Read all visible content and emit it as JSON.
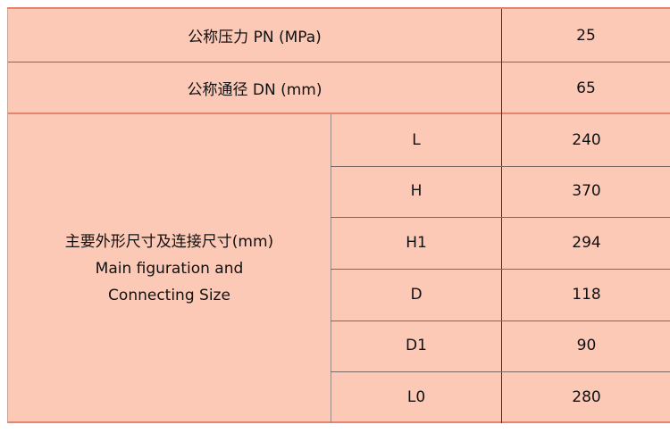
{
  "rows": [
    {
      "label": "公称压力 PN (MPa)",
      "value": "25"
    },
    {
      "label": "公称通径 DN (mm)",
      "value": "65"
    }
  ],
  "dimensions": {
    "label_cn": "主要外形尺寸及连接尺寸(mm)",
    "label_en_1": "Main figuration and",
    "label_en_2": "Connecting Size",
    "items": [
      {
        "key": "L",
        "value": "240"
      },
      {
        "key": "H",
        "value": "370"
      },
      {
        "key": "H1",
        "value": "294"
      },
      {
        "key": "D",
        "value": "118"
      },
      {
        "key": "D1",
        "value": "90"
      },
      {
        "key": "L0",
        "value": "280"
      }
    ]
  },
  "colors": {
    "background": "#fcc9b7",
    "accent_border": "#e8836e"
  }
}
